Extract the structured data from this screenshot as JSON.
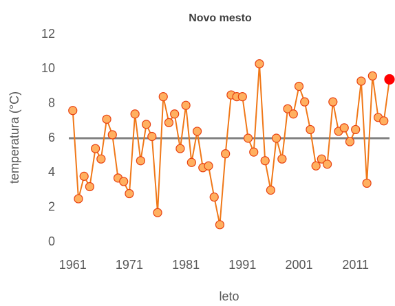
{
  "chart_data": {
    "type": "line",
    "title": "Novo mesto",
    "xlabel": "leto",
    "ylabel": "temperatura (°C)",
    "x": [
      1961,
      1962,
      1963,
      1964,
      1965,
      1966,
      1967,
      1968,
      1969,
      1970,
      1971,
      1972,
      1973,
      1974,
      1975,
      1976,
      1977,
      1978,
      1979,
      1980,
      1981,
      1982,
      1983,
      1984,
      1985,
      1986,
      1987,
      1988,
      1989,
      1990,
      1991,
      1992,
      1993,
      1994,
      1995,
      1996,
      1997,
      1998,
      1999,
      2000,
      2001,
      2002,
      2003,
      2004,
      2005,
      2006,
      2007,
      2008,
      2009,
      2010,
      2011,
      2012,
      2013,
      2014,
      2015,
      2016,
      2017
    ],
    "series": [
      {
        "color": "#f07818",
        "marker_color": "#ffb060",
        "marker_edge": "#e84010",
        "values": [
          7.6,
          2.5,
          3.8,
          3.2,
          5.4,
          4.8,
          7.1,
          6.2,
          3.7,
          3.5,
          2.8,
          7.4,
          4.7,
          6.8,
          6.1,
          1.7,
          8.4,
          6.9,
          7.4,
          5.4,
          7.9,
          4.6,
          6.4,
          4.3,
          4.4,
          2.6,
          1.0,
          5.1,
          8.5,
          8.4,
          8.4,
          6.0,
          5.2,
          10.3,
          4.7,
          3.0,
          6.0,
          4.8,
          7.7,
          7.4,
          9.0,
          8.1,
          6.5,
          4.4,
          4.8,
          4.5,
          8.1,
          6.4,
          6.6,
          5.8,
          6.5,
          9.3,
          3.4,
          9.6,
          7.2,
          7.0,
          9.4
        ],
        "last_point_color": "#ff0000"
      }
    ],
    "hline": {
      "value": 6.0,
      "color": "#808080"
    },
    "xlim": [
      1960.3,
      2017
    ],
    "xticks": [
      1961,
      1971,
      1981,
      1991,
      2001,
      2011
    ],
    "ylim": [
      0,
      12
    ],
    "yticks": [
      0,
      2,
      4,
      6,
      8,
      10,
      12
    ],
    "grid": false
  }
}
